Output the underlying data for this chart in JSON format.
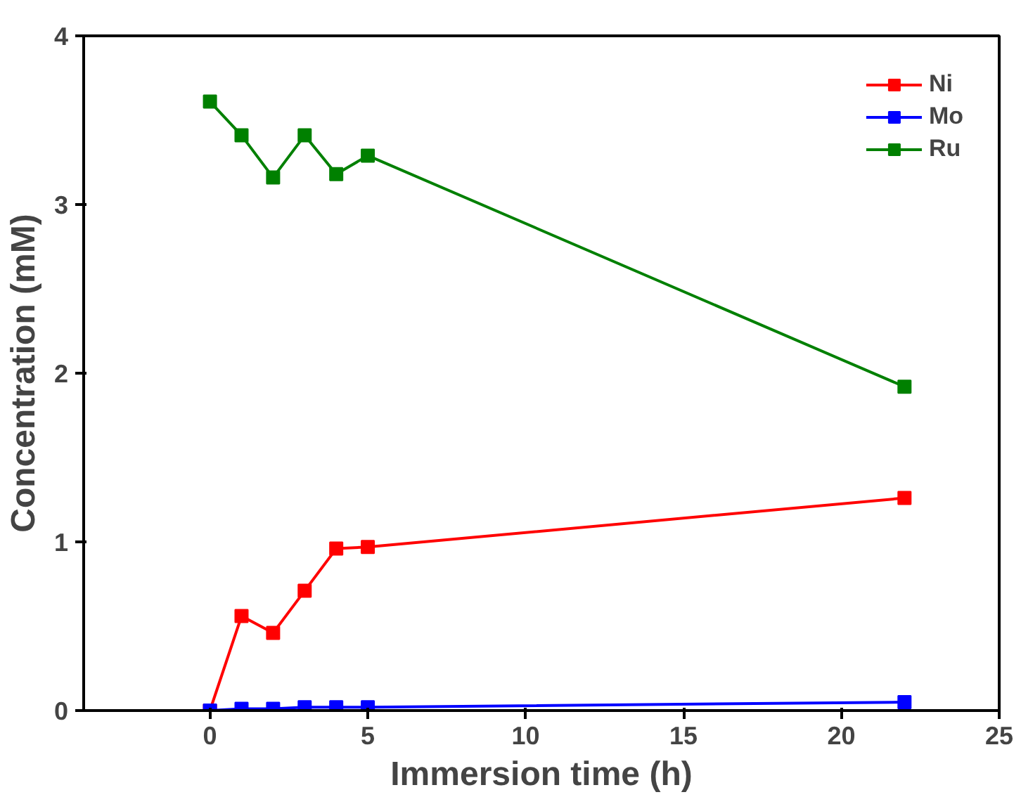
{
  "chart_data": {
    "type": "line",
    "xlabel": "Immersion time (h)",
    "ylabel": "Concentration (mM)",
    "x": [
      0,
      1,
      2,
      3,
      4,
      5,
      22
    ],
    "series": [
      {
        "name": "Ni",
        "color": "#ff0000",
        "values": [
          0,
          0.56,
          0.46,
          0.71,
          0.96,
          0.97,
          1.26
        ]
      },
      {
        "name": "Mo",
        "color": "#0000ff",
        "values": [
          0,
          0.01,
          0.01,
          0.02,
          0.02,
          0.02,
          0.05
        ]
      },
      {
        "name": "Ru",
        "color": "#008000",
        "values": [
          3.61,
          3.41,
          3.16,
          3.41,
          3.18,
          3.29,
          1.92
        ]
      }
    ],
    "xlim": [
      -4,
      25
    ],
    "ylim": [
      0,
      4
    ],
    "xticks": [
      0,
      5,
      10,
      15,
      20,
      25
    ],
    "yticks": [
      0,
      1,
      2,
      3,
      4
    ],
    "grid": false,
    "legend": "top right",
    "marker": "square",
    "line_style": "solid"
  }
}
